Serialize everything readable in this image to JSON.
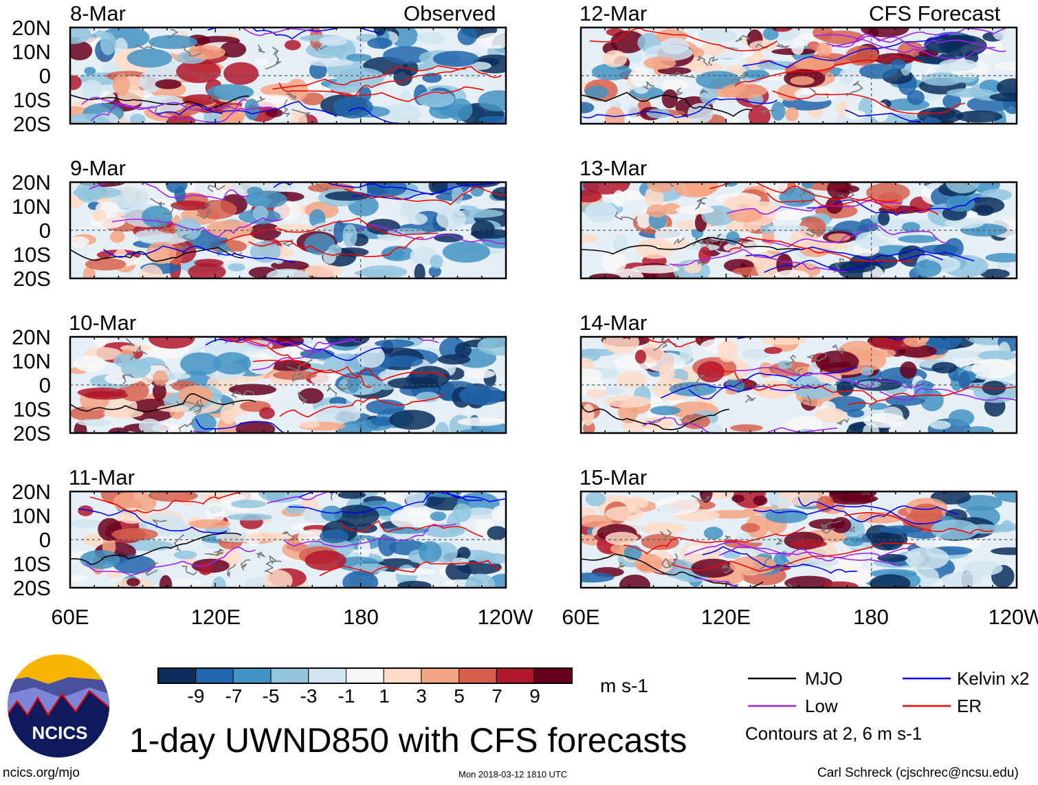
{
  "figure": {
    "title": "1-day UWND850 with CFS forecasts",
    "observed_label": "Observed",
    "forecast_label": "CFS Forecast",
    "units": "m s-1",
    "panels_observed": [
      "8-Mar",
      "9-Mar",
      "10-Mar",
      "11-Mar"
    ],
    "panels_forecast": [
      "12-Mar",
      "13-Mar",
      "14-Mar",
      "15-Mar"
    ],
    "lat_ticks": [
      "20N",
      "10N",
      "0",
      "10S",
      "20S"
    ],
    "lon_ticks": [
      "60E",
      "120E",
      "180",
      "120W"
    ],
    "colorbar": {
      "colors": [
        "#0b2e5c",
        "#2166ac",
        "#4393c3",
        "#92c5de",
        "#d1e5f0",
        "#f7f7f7",
        "#fddbc7",
        "#f4a582",
        "#d6604d",
        "#b2182b",
        "#67001f"
      ],
      "labels": [
        "-9",
        "-7",
        "-5",
        "-3",
        "-1",
        "1",
        "3",
        "5",
        "7",
        "9"
      ]
    },
    "legend": {
      "items": [
        {
          "label": "MJO",
          "color": "#000000"
        },
        {
          "label": "Kelvin x2",
          "color": "#0000ff"
        },
        {
          "label": "Low",
          "color": "#a020f0"
        },
        {
          "label": "ER",
          "color": "#ff0000"
        }
      ],
      "note": "Contours at 2, 6 m s-1"
    },
    "logo_text": "NCICS",
    "footer": {
      "url": "ncics.org/mjo",
      "timestamp": "Mon 2018-03-12 1810 UTC",
      "author": "Carl Schreck (cjschrec@ncsu.edu)"
    }
  }
}
